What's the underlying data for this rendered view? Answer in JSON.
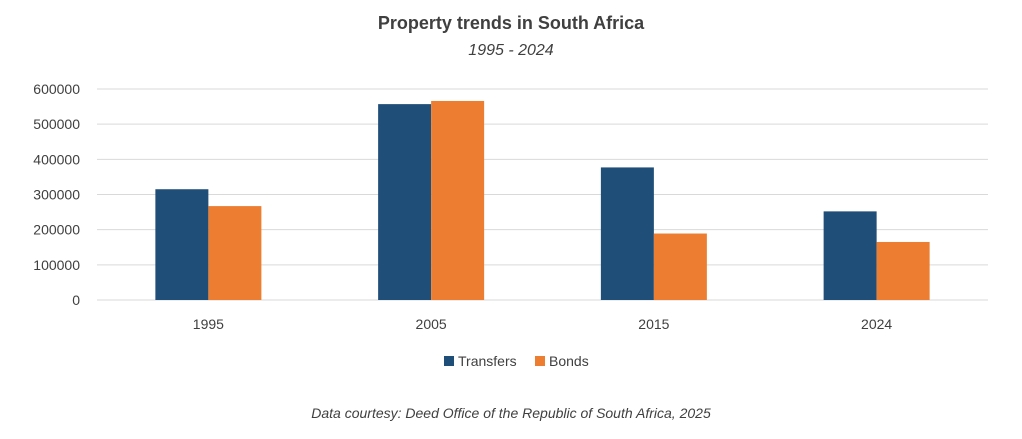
{
  "chart_data": {
    "type": "bar",
    "title": "Property trends in South Africa",
    "subtitle": "1995 - 2024",
    "categories": [
      "1995",
      "2005",
      "2015",
      "2024"
    ],
    "series": [
      {
        "name": "Transfers",
        "color": "#1f4e79",
        "values": [
          315000,
          557000,
          377000,
          252000
        ]
      },
      {
        "name": "Bonds",
        "color": "#ed7d31",
        "values": [
          267000,
          566000,
          189000,
          165000
        ]
      }
    ],
    "ylim": [
      0,
      600000
    ],
    "yticks": [
      0,
      100000,
      200000,
      300000,
      400000,
      500000,
      600000
    ],
    "xlabel": "",
    "ylabel": "",
    "grid": true,
    "legend": "bottom"
  },
  "footer": "Data courtesy: Deed Office of the Republic of South Africa, 2025"
}
